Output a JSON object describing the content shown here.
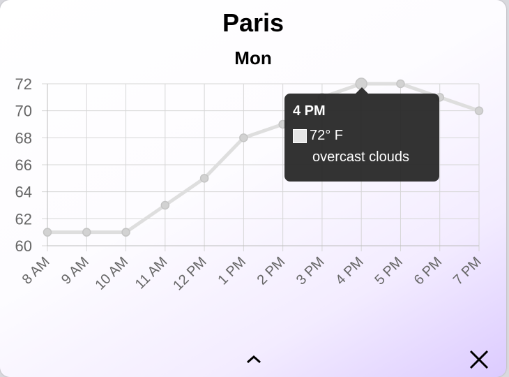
{
  "header": {
    "city": "Paris",
    "day": "Mon"
  },
  "chart_data": {
    "type": "line",
    "categories": [
      "8 AM",
      "9 AM",
      "10 AM",
      "11 AM",
      "12 PM",
      "1 PM",
      "2 PM",
      "3 PM",
      "4 PM",
      "5 PM",
      "6 PM",
      "7 PM"
    ],
    "series": [
      {
        "values": [
          61,
          61,
          61,
          63,
          65,
          68,
          69,
          71,
          72,
          72,
          71,
          70
        ]
      }
    ],
    "y_ticks": [
      60,
      62,
      64,
      66,
      68,
      70,
      72
    ],
    "ylim": [
      60,
      72
    ],
    "grid": true,
    "line_color": "#dedede"
  },
  "tooltip": {
    "title": "4 PM",
    "value": "72° F",
    "description": "overcast clouds"
  },
  "icons": {
    "collapse": "chevron-up-icon",
    "close": "close-icon"
  }
}
